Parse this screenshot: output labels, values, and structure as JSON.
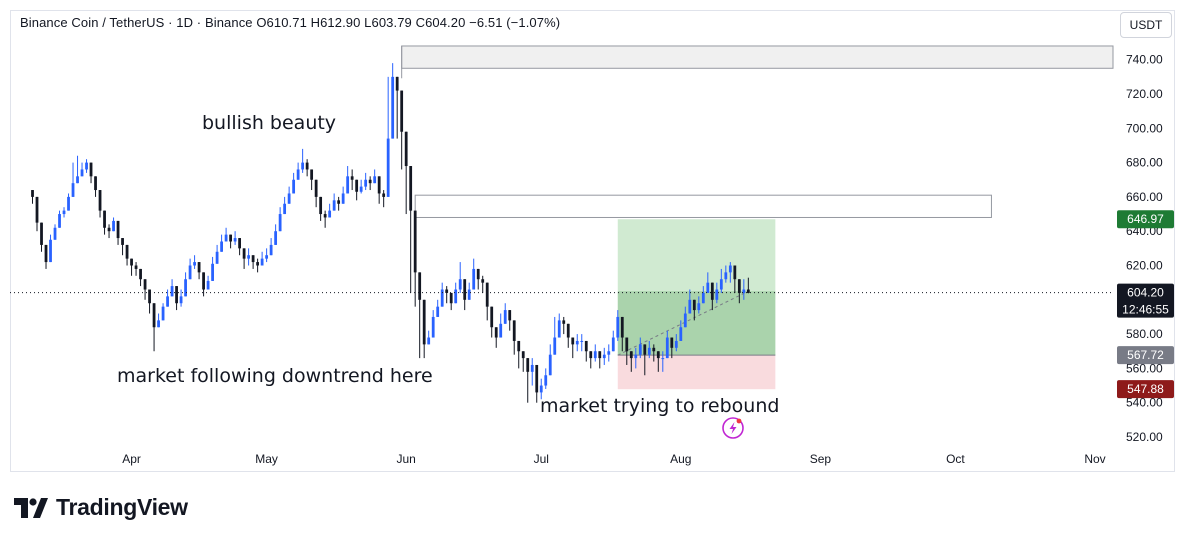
{
  "header": {
    "text": "Binance Coin / TetherUS · 1D · Binance  O610.71  H612.90  L603.79  C604.20  −6.51 (−1.07%)",
    "currency": "USDT"
  },
  "brand": {
    "logo_text": "TradingView"
  },
  "colors": {
    "up": "#2962ff",
    "down": "#131722",
    "profit_zone": "#c8e6c9",
    "loss_zone": "#f8d7da",
    "target_tag": "#1e7b34",
    "stop_tag": "#8e1a1a",
    "entry_tag": "#787b86",
    "price_tag": "#131722"
  },
  "annotations": [
    {
      "text": "bullish beauty"
    },
    {
      "text": "market following downtrend here"
    },
    {
      "text": "market trying to rebound"
    }
  ],
  "chart_data": {
    "type": "candlestick",
    "title": "Binance Coin / TetherUS · 1D · Binance",
    "ylim": [
      510,
      748
    ],
    "y_ticks": [
      520,
      540,
      560,
      580,
      600,
      620,
      640,
      660,
      680,
      700,
      720,
      740
    ],
    "y_tick_labels": [
      "520.00",
      "540.00",
      "560.00",
      "580.00",
      "600.00",
      "620.00",
      "640.00",
      "660.00",
      "680.00",
      "700.00",
      "720.00",
      "740.00"
    ],
    "x_ticks": [
      {
        "label": "Apr",
        "day": 22
      },
      {
        "label": "May",
        "day": 52
      },
      {
        "label": "Jun",
        "day": 83
      },
      {
        "label": "Jul",
        "day": 113
      },
      {
        "label": "Aug",
        "day": 144
      },
      {
        "label": "Sep",
        "day": 175
      },
      {
        "label": "Oct",
        "day": 205
      },
      {
        "label": "Nov",
        "day": 236
      }
    ],
    "x_range_days": [
      -5,
      240
    ],
    "last_price": "604.20",
    "countdown": "12:46:55",
    "ohlc_last": {
      "open": 610.71,
      "high": 612.9,
      "low": 603.79,
      "close": 604.2,
      "change": -6.51,
      "change_pct": -1.07
    },
    "position": {
      "start_day": 130,
      "end_day": 165,
      "entry": 567.72,
      "target": 646.97,
      "stop": 547.88,
      "entry_label": "567.72",
      "target_label": "646.97",
      "stop_label": "547.88"
    },
    "zones": [
      {
        "from_day": 82,
        "to_day": 255,
        "low": 735,
        "high": 748,
        "fill": "#f0f0f0"
      },
      {
        "from_day": 85,
        "to_day": 213,
        "low": 648,
        "high": 661,
        "fill": "#ffffff"
      }
    ],
    "closes": [
      660,
      645,
      632,
      622,
      635,
      642,
      650,
      652,
      660,
      668,
      672,
      676,
      680,
      672,
      664,
      652,
      642,
      640,
      646,
      636,
      632,
      624,
      620,
      618,
      612,
      606,
      598,
      584,
      588,
      596,
      602,
      608,
      598,
      602,
      612,
      620,
      622,
      616,
      606,
      611,
      621,
      628,
      634,
      638,
      634,
      636,
      630,
      624,
      626,
      622,
      620,
      624,
      626,
      632,
      640,
      650,
      656,
      662,
      670,
      676,
      680,
      676,
      670,
      660,
      650,
      648,
      652,
      658,
      656,
      662,
      672,
      670,
      663,
      666,
      670,
      668,
      672,
      662,
      660,
      694,
      730,
      722,
      698,
      678,
      652,
      616,
      600,
      574,
      578,
      590,
      596,
      606,
      604,
      598,
      606,
      612,
      600,
      606,
      618,
      612,
      610,
      596,
      584,
      578,
      586,
      594,
      588,
      576,
      570,
      566,
      558,
      562,
      546,
      550,
      556,
      568,
      578,
      588,
      586,
      578,
      574,
      576,
      576,
      570,
      566,
      570,
      566,
      568,
      570,
      578,
      590,
      578,
      570,
      566,
      568,
      574,
      568,
      572,
      570,
      566,
      566,
      578,
      572,
      576,
      584,
      592,
      600,
      594,
      598,
      604,
      610,
      600,
      606,
      612,
      616,
      620,
      612,
      604,
      606,
      604
    ],
    "highs": [
      664,
      648,
      636,
      626,
      638,
      644,
      652,
      654,
      662,
      680,
      684,
      680,
      682,
      676,
      668,
      656,
      646,
      644,
      648,
      638,
      636,
      628,
      624,
      622,
      616,
      608,
      602,
      590,
      592,
      598,
      606,
      612,
      602,
      606,
      616,
      624,
      626,
      620,
      610,
      614,
      625,
      632,
      638,
      642,
      638,
      640,
      634,
      628,
      630,
      626,
      624,
      628,
      630,
      636,
      644,
      654,
      660,
      666,
      674,
      680,
      688,
      682,
      674,
      664,
      654,
      652,
      656,
      662,
      660,
      666,
      678,
      676,
      666,
      670,
      674,
      672,
      676,
      666,
      664,
      730,
      738,
      728,
      702,
      682,
      656,
      620,
      610,
      580,
      582,
      594,
      600,
      610,
      608,
      602,
      610,
      622,
      606,
      610,
      624,
      616,
      614,
      600,
      590,
      582,
      592,
      598,
      592,
      582,
      574,
      570,
      562,
      566,
      552,
      554,
      560,
      574,
      590,
      592,
      590,
      582,
      578,
      580,
      580,
      574,
      570,
      574,
      570,
      572,
      574,
      582,
      594,
      584,
      576,
      570,
      572,
      578,
      572,
      576,
      574,
      570,
      570,
      582,
      576,
      580,
      588,
      596,
      606,
      598,
      602,
      608,
      616,
      604,
      610,
      618,
      620,
      622,
      618,
      610,
      612,
      612.9
    ],
    "lows": [
      656,
      640,
      628,
      618,
      630,
      640,
      646,
      648,
      656,
      664,
      668,
      672,
      674,
      668,
      660,
      648,
      638,
      636,
      640,
      632,
      626,
      620,
      614,
      614,
      608,
      600,
      592,
      570,
      584,
      592,
      598,
      604,
      594,
      596,
      606,
      616,
      618,
      612,
      602,
      606,
      616,
      624,
      630,
      634,
      630,
      632,
      626,
      618,
      620,
      618,
      616,
      620,
      622,
      628,
      636,
      646,
      652,
      658,
      666,
      672,
      674,
      672,
      664,
      654,
      646,
      642,
      648,
      654,
      652,
      658,
      666,
      664,
      658,
      662,
      664,
      664,
      668,
      656,
      654,
      660,
      714,
      694,
      676,
      650,
      604,
      596,
      566,
      566,
      574,
      584,
      590,
      600,
      598,
      594,
      600,
      604,
      594,
      600,
      610,
      606,
      604,
      588,
      578,
      572,
      580,
      588,
      582,
      568,
      560,
      558,
      540,
      550,
      540,
      542,
      548,
      562,
      572,
      578,
      580,
      572,
      566,
      570,
      570,
      564,
      560,
      564,
      560,
      562,
      564,
      572,
      576,
      570,
      562,
      558,
      560,
      566,
      556,
      566,
      564,
      558,
      558,
      570,
      566,
      570,
      576,
      586,
      592,
      588,
      592,
      598,
      604,
      594,
      598,
      604,
      610,
      610,
      604,
      598,
      600,
      603.79
    ]
  }
}
